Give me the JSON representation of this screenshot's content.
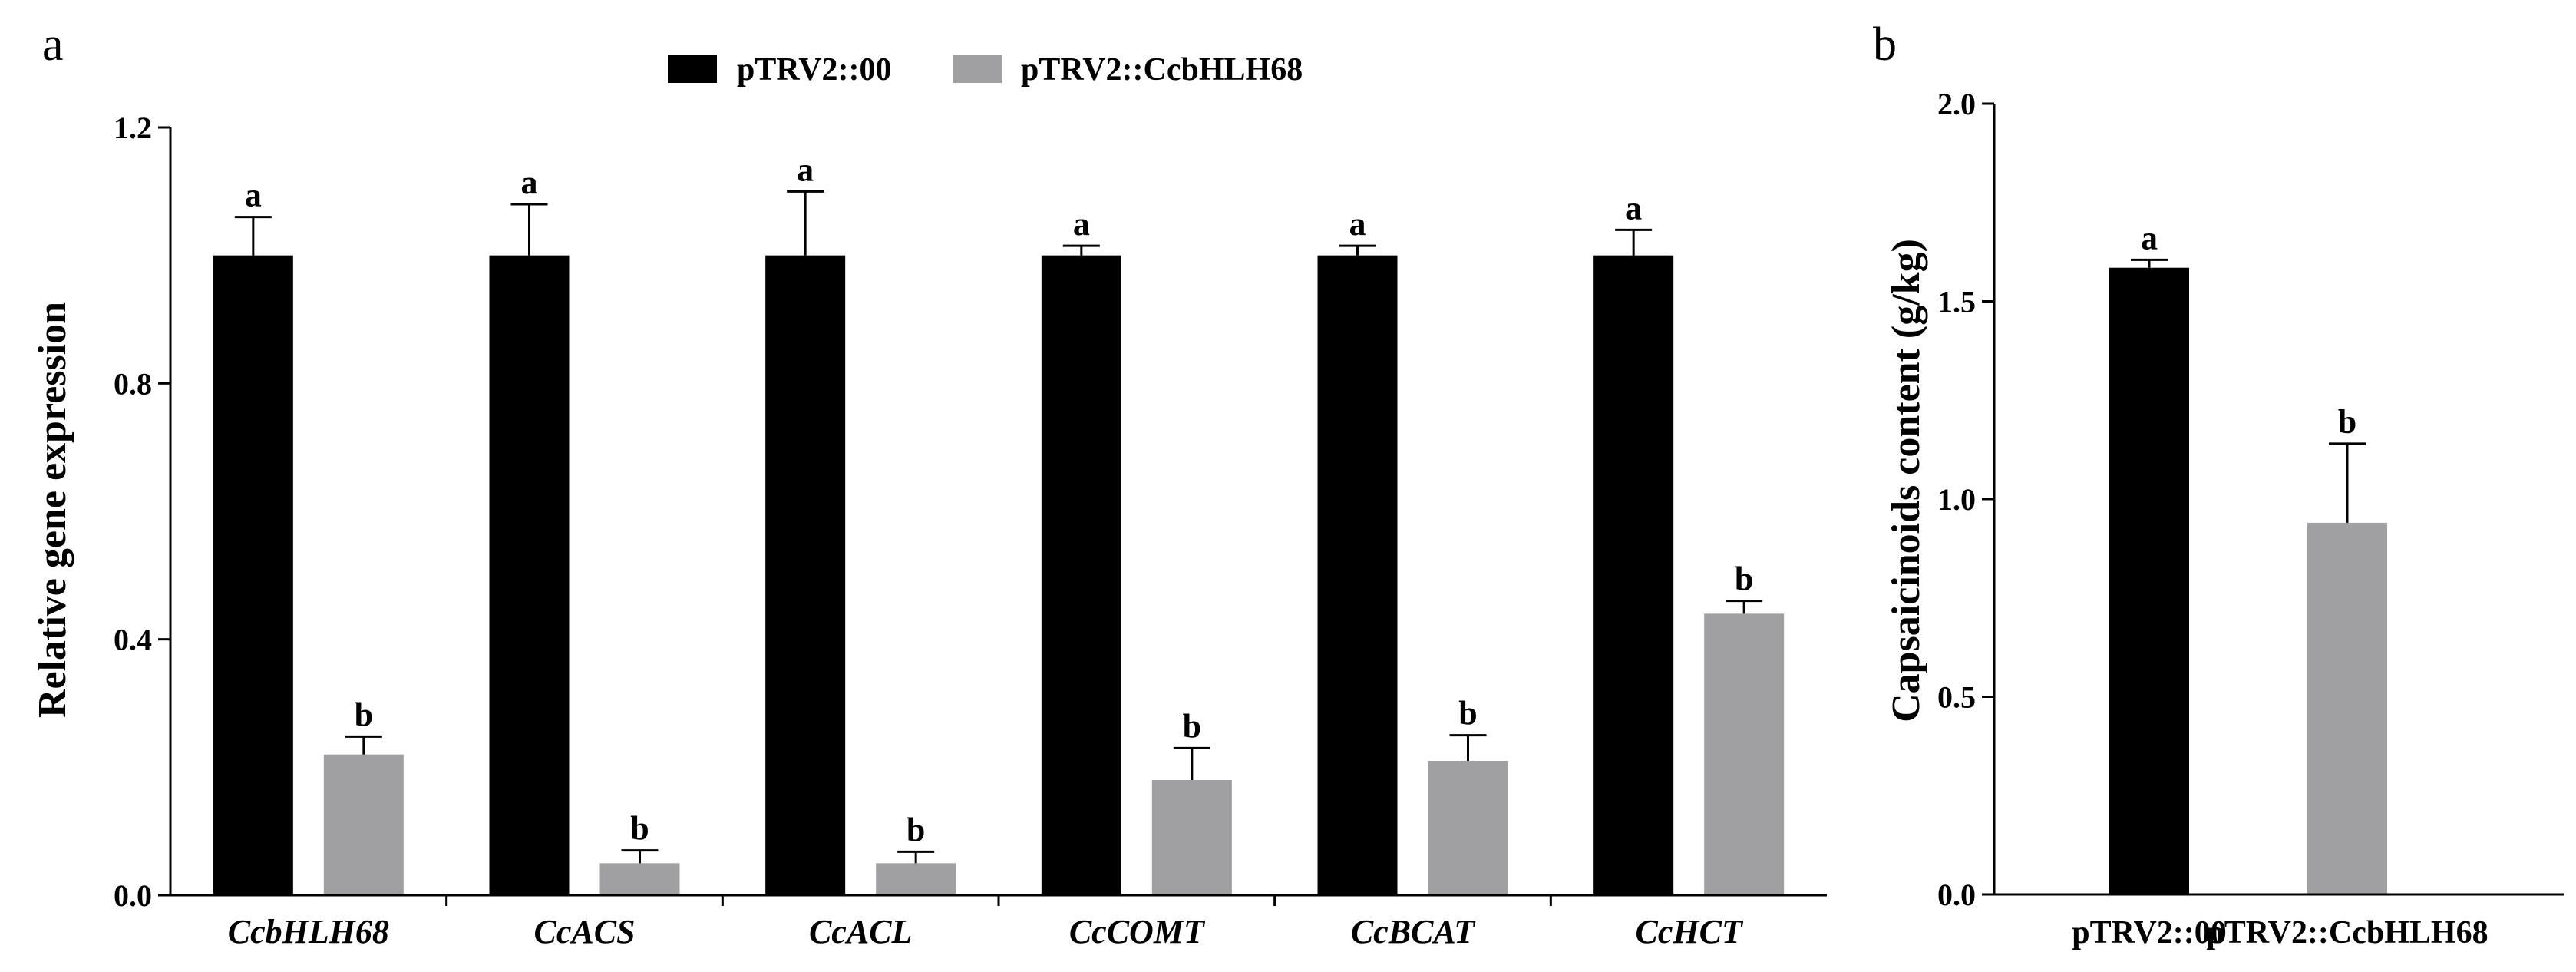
{
  "legend": {
    "items": [
      {
        "label": "pTRV2::00",
        "color": "#000000"
      },
      {
        "label": "pTRV2::CcbHLH68",
        "color": "#a0a0a2"
      }
    ]
  },
  "chart_data": [
    {
      "panel": "a",
      "type": "bar",
      "ylabel": "Relative gene expression",
      "ylim": [
        0,
        1.2
      ],
      "yticks": [
        "0.0",
        "0.4",
        "0.8",
        "1.2"
      ],
      "categories": [
        "CcbHLH68",
        "CcACS",
        "CcACL",
        "CcCOMT",
        "CcBCAT",
        "CcHCT"
      ],
      "series": [
        {
          "name": "pTRV2::00",
          "color": "#000000",
          "values": [
            1.0,
            1.0,
            1.0,
            1.0,
            1.0,
            1.0
          ],
          "errors": [
            0.06,
            0.08,
            0.1,
            0.015,
            0.015,
            0.04
          ],
          "significance": [
            "a",
            "a",
            "a",
            "a",
            "a",
            "a"
          ]
        },
        {
          "name": "pTRV2::CcbHLH68",
          "color": "#a0a0a2",
          "values": [
            0.22,
            0.05,
            0.05,
            0.18,
            0.21,
            0.44
          ],
          "errors": [
            0.028,
            0.02,
            0.018,
            0.05,
            0.04,
            0.02
          ],
          "significance": [
            "b",
            "b",
            "b",
            "b",
            "b",
            "b"
          ]
        }
      ]
    },
    {
      "panel": "b",
      "type": "bar",
      "ylabel": "Capsaicinoids content (g/kg)",
      "ylim": [
        0,
        2.0
      ],
      "yticks": [
        "0.0",
        "0.5",
        "1.0",
        "1.5",
        "2.0"
      ],
      "categories": [
        "pTRV2::00",
        "pTRV2::CcbHLH68"
      ],
      "values": [
        1.585,
        0.94
      ],
      "errors": [
        0.02,
        0.2
      ],
      "colors": [
        "#000000",
        "#a0a0a2"
      ],
      "significance": [
        "a",
        "b"
      ]
    }
  ]
}
